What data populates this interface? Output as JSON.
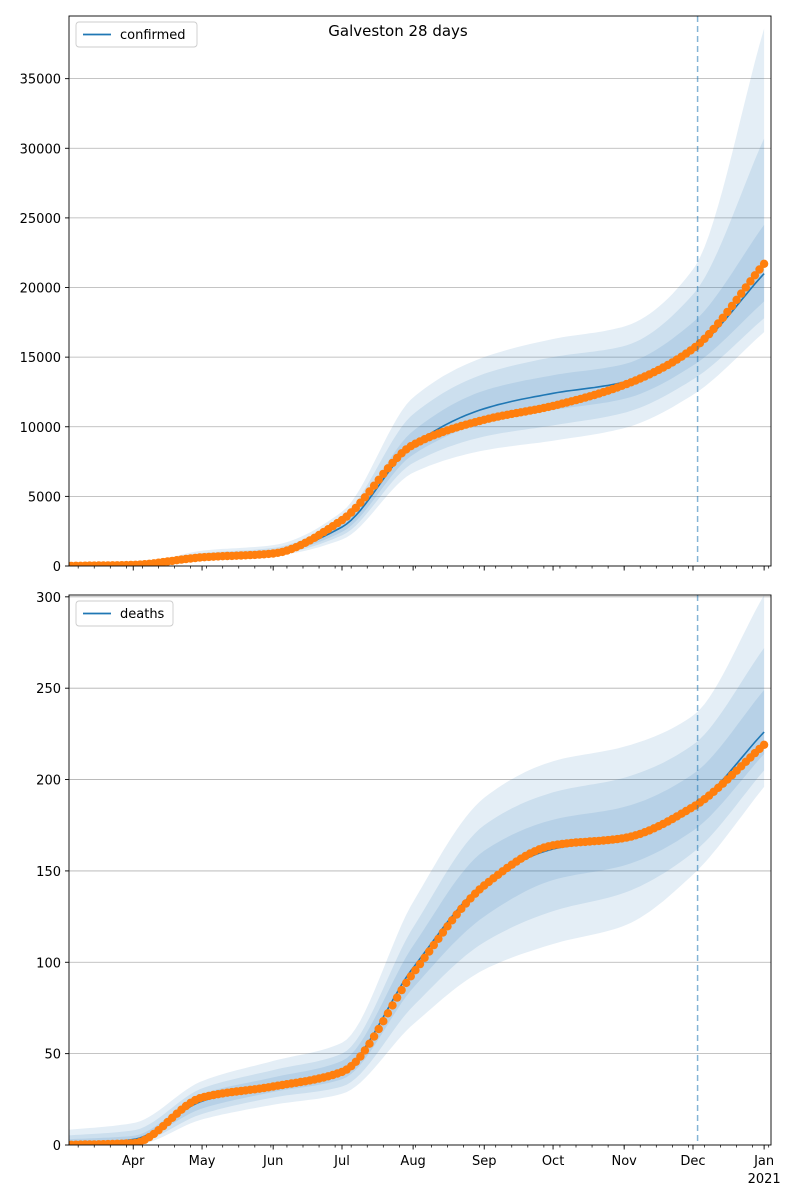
{
  "colors": {
    "model_line": "#1f77b4",
    "band": "#1f77b4",
    "observed": "#ff7f0e",
    "forecast_start_line": "#1f77b4",
    "grid": "#b0b0b0"
  },
  "chart_data": [
    {
      "type": "line",
      "title": "Galveston 28 days",
      "legend": {
        "label": "confirmed",
        "position": "top-left"
      },
      "ylim": [
        0,
        39500
      ],
      "yticks": [
        0,
        5000,
        10000,
        15000,
        20000,
        25000,
        30000,
        35000
      ],
      "ytick_labels": [
        "0",
        "5000",
        "10000",
        "15000",
        "20000",
        "25000",
        "30000",
        "35000"
      ],
      "grid": "horizontal",
      "x_dates": [
        "2020-03-01",
        "2020-04-01",
        "2020-05-01",
        "2020-06-01",
        "2020-07-01",
        "2020-08-01",
        "2020-09-01",
        "2020-10-01",
        "2020-11-01",
        "2020-12-01",
        "2021-01-01"
      ],
      "model": [
        0,
        50,
        700,
        1000,
        2800,
        8700,
        11300,
        12400,
        13200,
        15500,
        21000
      ],
      "bands": [
        {
          "lower": [
            0,
            30,
            550,
            750,
            1900,
            6700,
            8300,
            9000,
            9900,
            12300,
            16800
          ],
          "upper": [
            0,
            90,
            1100,
            1500,
            3900,
            12100,
            15000,
            16300,
            17200,
            21300,
            38600
          ]
        },
        {
          "lower": [
            0,
            35,
            600,
            830,
            2200,
            7400,
            9300,
            10100,
            11000,
            13400,
            17800
          ],
          "upper": [
            0,
            75,
            930,
            1300,
            3500,
            10900,
            13800,
            15000,
            15800,
            19500,
            30700
          ]
        },
        {
          "lower": [
            0,
            40,
            650,
            900,
            2450,
            8000,
            10300,
            11200,
            12000,
            14400,
            19000
          ],
          "upper": [
            0,
            62,
            800,
            1150,
            3100,
            9700,
            12600,
            13700,
            14500,
            17500,
            24500
          ]
        }
      ],
      "observed": [
        0,
        80,
        620,
        900,
        3300,
        8700,
        10500,
        11500,
        13000,
        15600,
        21700
      ],
      "forecast_start": "2020-12-03"
    },
    {
      "type": "line",
      "title": "",
      "legend": {
        "label": "deaths",
        "position": "top-left"
      },
      "ylim": [
        0,
        301
      ],
      "yticks": [
        0,
        50,
        100,
        150,
        200,
        250,
        300
      ],
      "ytick_labels": [
        "0",
        "50",
        "100",
        "150",
        "200",
        "250",
        "300"
      ],
      "grid": "horizontal",
      "x_dates": [
        "2020-03-01",
        "2020-04-01",
        "2020-05-01",
        "2020-06-01",
        "2020-07-01",
        "2020-08-01",
        "2020-09-01",
        "2020-10-01",
        "2020-11-01",
        "2020-12-01",
        "2021-01-01"
      ],
      "model": [
        0,
        3,
        24,
        33,
        41,
        97,
        143,
        162,
        168,
        185,
        226
      ],
      "bands": [
        {
          "lower": [
            0,
            0,
            14,
            22,
            28,
            66,
            96,
            110,
            120,
            148,
            196
          ],
          "upper": [
            8,
            12,
            35,
            46,
            56,
            133,
            190,
            210,
            218,
            235,
            301
          ]
        },
        {
          "lower": [
            0,
            1,
            17,
            26,
            32,
            76,
            111,
            128,
            138,
            160,
            205
          ],
          "upper": [
            5,
            8,
            31,
            41,
            50,
            119,
            175,
            193,
            201,
            219,
            272
          ]
        },
        {
          "lower": [
            0,
            2,
            20,
            29,
            36,
            86,
            125,
            145,
            153,
            172,
            214
          ],
          "upper": [
            3,
            5,
            28,
            37,
            46,
            109,
            161,
            178,
            185,
            203,
            249
          ]
        }
      ],
      "observed": [
        0,
        1,
        26,
        32,
        40,
        94,
        142,
        164,
        168,
        185,
        219
      ],
      "forecast_start": "2020-12-03"
    }
  ],
  "x_axis": {
    "labels": [
      "Apr",
      "May",
      "Jun",
      "Jul",
      "Aug",
      "Sep",
      "Oct",
      "Nov",
      "Dec",
      "Jan"
    ],
    "label_dates": [
      "2020-04-01",
      "2020-05-01",
      "2020-06-01",
      "2020-07-01",
      "2020-08-01",
      "2020-09-01",
      "2020-10-01",
      "2020-11-01",
      "2020-12-01",
      "2021-01-01"
    ],
    "year_label": "2021",
    "range": [
      "2020-03-04",
      "2021-01-04"
    ]
  }
}
